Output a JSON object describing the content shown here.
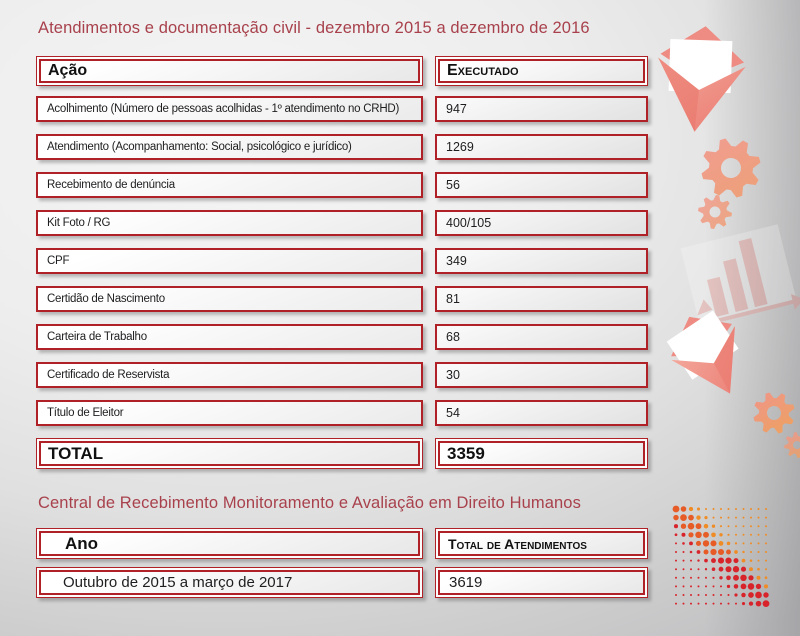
{
  "section1": {
    "title": "Atendimentos e documentação civil - dezembro 2015 a dezembro de 2016",
    "table": {
      "headers": [
        "Ação",
        "Executado"
      ],
      "rows": [
        [
          "Acolhimento (Número de pessoas acolhidas - 1º atendimento no CRHD)",
          "947"
        ],
        [
          "Atendimento (Acompanhamento: Social, psicológico e jurídico)",
          "1269"
        ],
        [
          "Recebimento de denúncia",
          "56"
        ],
        [
          "Kit Foto / RG",
          "400/105"
        ],
        [
          "CPF",
          "349"
        ],
        [
          "Certidão de Nascimento",
          "81"
        ],
        [
          "Carteira de Trabalho",
          "68"
        ],
        [
          "Certificado de Reservista",
          "30"
        ],
        [
          "Título de Eleitor",
          "54"
        ]
      ],
      "total_label": "TOTAL",
      "total_value": "3359"
    }
  },
  "section2": {
    "title": "Central de Recebimento Monitoramento e Avaliação em Direito Humanos",
    "table": {
      "headers": [
        "Ano",
        "Total de Atendimentos"
      ],
      "rows": [
        [
          "Outubro de 2015 a março de 2017",
          "3619"
        ]
      ]
    }
  },
  "colors": {
    "title_red": "#a8414c",
    "border_red": "#b02127",
    "dot_orange": "#ef8c25",
    "dot_red": "#d8232b",
    "icon_salmon": "#f09a8b"
  },
  "icons": {
    "decorations": [
      "mail-open-icon",
      "gear-icon",
      "gear-small-icon",
      "chart-up-icon",
      "mail-open-tilted-icon",
      "gear-orange-icon",
      "gear-edge-icon",
      "dot-grid-pattern"
    ]
  }
}
